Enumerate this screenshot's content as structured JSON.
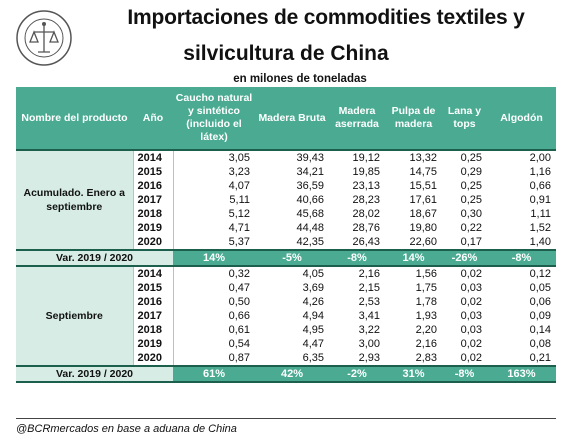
{
  "header": {
    "title_line1": "Importaciones de commodities textiles y",
    "title_line2": "silvicultura de China",
    "subtitle": "en milones de toneladas",
    "logo_text": "BOLSA DE COMERCIO DE ROSARIO"
  },
  "table": {
    "columns": [
      "Nombre del producto",
      "Año",
      "Caucho natural y sintético (incluido el látex)",
      "Madera Bruta",
      "Madera aserrada",
      "Pulpa de madera",
      "Lana y tops",
      "Algodón"
    ],
    "group1": {
      "label": "Acumulado. Enero a septiembre",
      "rows": [
        [
          "2014",
          "3,05",
          "39,43",
          "19,12",
          "13,32",
          "0,25",
          "2,00"
        ],
        [
          "2015",
          "3,23",
          "34,21",
          "19,85",
          "14,75",
          "0,29",
          "1,16"
        ],
        [
          "2016",
          "4,07",
          "36,59",
          "23,13",
          "15,51",
          "0,25",
          "0,66"
        ],
        [
          "2017",
          "5,11",
          "40,66",
          "28,23",
          "17,61",
          "0,25",
          "0,91"
        ],
        [
          "2018",
          "5,12",
          "45,68",
          "28,02",
          "18,67",
          "0,30",
          "1,11"
        ],
        [
          "2019",
          "4,71",
          "44,48",
          "28,76",
          "19,80",
          "0,22",
          "1,52"
        ],
        [
          "2020",
          "5,37",
          "42,35",
          "26,43",
          "22,60",
          "0,17",
          "1,40"
        ]
      ],
      "var_label": "Var. 2019 / 2020",
      "var_values": [
        "14%",
        "-5%",
        "-8%",
        "14%",
        "-26%",
        "-8%"
      ]
    },
    "group2": {
      "label": "Septiembre",
      "rows": [
        [
          "2014",
          "0,32",
          "4,05",
          "2,16",
          "1,56",
          "0,02",
          "0,12"
        ],
        [
          "2015",
          "0,47",
          "3,69",
          "2,15",
          "1,75",
          "0,03",
          "0,05"
        ],
        [
          "2016",
          "0,50",
          "4,26",
          "2,53",
          "1,78",
          "0,02",
          "0,06"
        ],
        [
          "2017",
          "0,66",
          "4,94",
          "3,41",
          "1,93",
          "0,03",
          "0,09"
        ],
        [
          "2018",
          "0,61",
          "4,95",
          "3,22",
          "2,20",
          "0,03",
          "0,14"
        ],
        [
          "2019",
          "0,54",
          "4,47",
          "3,00",
          "2,16",
          "0,02",
          "0,08"
        ],
        [
          "2020",
          "0,87",
          "6,35",
          "2,93",
          "2,83",
          "0,02",
          "0,21"
        ]
      ],
      "var_label": "Var. 2019 / 2020",
      "var_values": [
        "61%",
        "42%",
        "-2%",
        "31%",
        "-8%",
        "163%"
      ]
    }
  },
  "footer": "@BCRmercados en base a aduana de China"
}
